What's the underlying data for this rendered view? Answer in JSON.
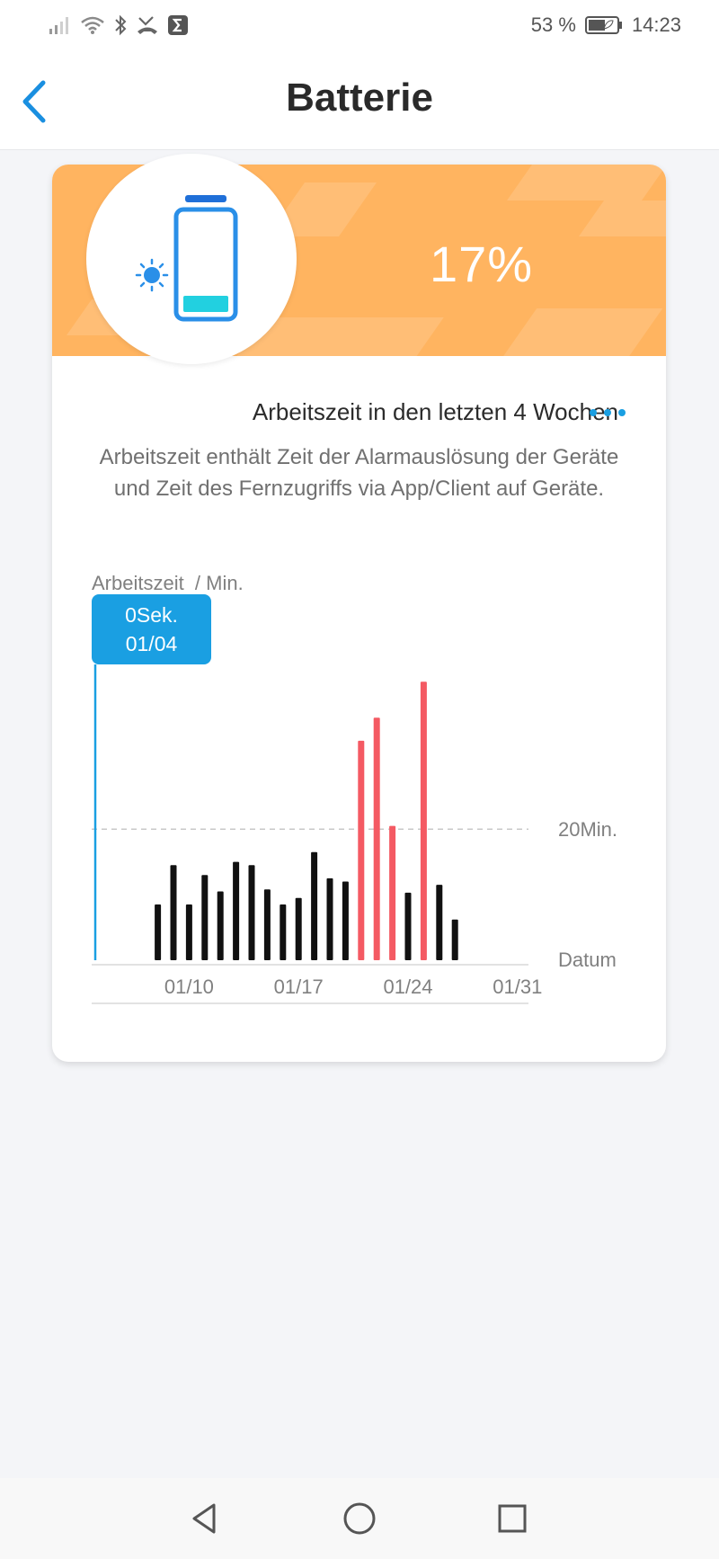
{
  "status_bar": {
    "battery_text": "53 %",
    "time": "14:23",
    "icons": [
      "signal-icon",
      "wifi-icon",
      "bluetooth-icon",
      "missed-call-icon",
      "sigma-icon",
      "battery-icon"
    ]
  },
  "header": {
    "title": "Batterie",
    "back_icon": "chevron-left-icon"
  },
  "battery": {
    "level_percent": 17,
    "label": "17%",
    "icons": [
      "sun-icon",
      "battery-level-icon"
    ],
    "banner_color": "#ffb460",
    "fill_color": "#22d0e0",
    "cap_color": "#1f6fd8"
  },
  "chart_section": {
    "title": "Arbeitszeit in den letzten 4 Wochen",
    "more_icon": "more-dots-icon",
    "description": "Arbeitszeit enthält Zeit der Alarmauslösung der Geräte und Zeit des Fernzugriffs via App/Client auf Geräte."
  },
  "chart_data": {
    "type": "bar",
    "ylabel": "Arbeitszeit  / Min.",
    "xlabel": "Datum",
    "reference_line": {
      "value": 20,
      "label": "20Min."
    },
    "x_ticks": [
      "01/10",
      "01/17",
      "01/24",
      "01/31"
    ],
    "tooltip": {
      "value": "0Sek.",
      "date": "01/04"
    },
    "categories": [
      "01/04",
      "01/05",
      "01/06",
      "01/07",
      "01/08",
      "01/09",
      "01/10",
      "01/11",
      "01/12",
      "01/13",
      "01/14",
      "01/15",
      "01/16",
      "01/17",
      "01/18",
      "01/19",
      "01/20",
      "01/21",
      "01/22",
      "01/23",
      "01/24",
      "01/25",
      "01/26",
      "01/27",
      "01/28",
      "01/29",
      "01/30",
      "01/31"
    ],
    "values": [
      0,
      0,
      0,
      0,
      8.5,
      14.5,
      8.5,
      13,
      10.5,
      15,
      14.5,
      10.8,
      8.5,
      9.5,
      16.5,
      12.5,
      12,
      33.5,
      37,
      20.5,
      10.3,
      42.5,
      11.5,
      6.2,
      0,
      0,
      0,
      0
    ],
    "highlight_color": "#f45a63",
    "bar_color": "#111111",
    "highlight_threshold": 20,
    "grid": false,
    "ylim": [
      0,
      45
    ]
  },
  "nav_bar": {
    "buttons": [
      "back-nav-icon",
      "home-nav-icon",
      "recents-nav-icon"
    ]
  }
}
